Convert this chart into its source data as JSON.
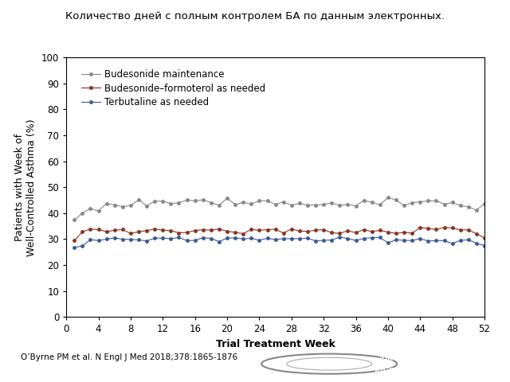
{
  "title": "Количество дней с полным контролем БА по данным электронных.",
  "xlabel": "Trial Treatment Week",
  "ylabel": "Patients with Week of\nWell-Controlled Asthma (%)",
  "ylim": [
    0,
    100
  ],
  "yticks": [
    0,
    10,
    20,
    30,
    40,
    50,
    60,
    70,
    80,
    90,
    100
  ],
  "xlim": [
    0,
    52
  ],
  "xticks": [
    0,
    4,
    8,
    12,
    16,
    20,
    24,
    28,
    32,
    36,
    40,
    44,
    48,
    52
  ],
  "caption": "O’Byrne PM et al. N Engl J Med 2018;378:1865-1876",
  "legend": [
    {
      "label": "Budesonide maintenance",
      "color": "#888888"
    },
    {
      "label": "Budesonide–formoterol as needed",
      "color": "#8B3322"
    },
    {
      "label": "Terbutaline as needed",
      "color": "#3B5998"
    }
  ],
  "budesonide_maintenance": {
    "color": "#888888",
    "x": [
      1,
      2,
      3,
      4,
      5,
      6,
      7,
      8,
      9,
      10,
      11,
      12,
      13,
      14,
      15,
      16,
      17,
      18,
      19,
      20,
      21,
      22,
      23,
      24,
      25,
      26,
      27,
      28,
      29,
      30,
      31,
      32,
      33,
      34,
      35,
      36,
      37,
      38,
      39,
      40,
      41,
      42,
      43,
      44,
      45,
      46,
      47,
      48,
      49,
      50,
      51,
      52
    ],
    "y": [
      37,
      40,
      41,
      42,
      43,
      43,
      43,
      44,
      44,
      44,
      44,
      44,
      44,
      44,
      44,
      45,
      44,
      44,
      44,
      45,
      44,
      44,
      44,
      44,
      44,
      44,
      44,
      44,
      44,
      44,
      44,
      44,
      44,
      44,
      44,
      44,
      44,
      44,
      44,
      45,
      45,
      44,
      44,
      44,
      44,
      44,
      44,
      43,
      43,
      43,
      41,
      44
    ]
  },
  "budesonide_formoterol": {
    "color": "#8B3322",
    "x": [
      1,
      2,
      3,
      4,
      5,
      6,
      7,
      8,
      9,
      10,
      11,
      12,
      13,
      14,
      15,
      16,
      17,
      18,
      19,
      20,
      21,
      22,
      23,
      24,
      25,
      26,
      27,
      28,
      29,
      30,
      31,
      32,
      33,
      34,
      35,
      36,
      37,
      38,
      39,
      40,
      41,
      42,
      43,
      44,
      45,
      46,
      47,
      48,
      49,
      50,
      51,
      52
    ],
    "y": [
      30,
      32,
      33,
      33,
      33,
      33,
      33,
      33,
      33,
      33,
      33,
      33,
      33,
      33,
      33,
      34,
      34,
      33,
      33,
      34,
      33,
      33,
      33,
      33,
      33,
      33,
      33,
      34,
      33,
      33,
      33,
      33,
      33,
      33,
      33,
      33,
      33,
      33,
      33,
      33,
      33,
      33,
      33,
      35,
      34,
      34,
      34,
      34,
      33,
      33,
      32,
      31
    ]
  },
  "terbutaline": {
    "color": "#3B5998",
    "x": [
      1,
      2,
      3,
      4,
      5,
      6,
      7,
      8,
      9,
      10,
      11,
      12,
      13,
      14,
      15,
      16,
      17,
      18,
      19,
      20,
      21,
      22,
      23,
      24,
      25,
      26,
      27,
      28,
      29,
      30,
      31,
      32,
      33,
      34,
      35,
      36,
      37,
      38,
      39,
      40,
      41,
      42,
      43,
      44,
      45,
      46,
      47,
      48,
      49,
      50,
      51,
      52
    ],
    "y": [
      26,
      28,
      30,
      30,
      30,
      30,
      30,
      30,
      30,
      30,
      30,
      30,
      30,
      30,
      30,
      30,
      30,
      30,
      29,
      30,
      30,
      30,
      30,
      30,
      30,
      30,
      30,
      30,
      30,
      30,
      30,
      30,
      30,
      30,
      30,
      30,
      30,
      30,
      30,
      29,
      29,
      30,
      30,
      30,
      30,
      29,
      30,
      29,
      29,
      29,
      28,
      27
    ]
  },
  "background_color": "#ffffff",
  "title_fontsize": 9.5,
  "axis_label_fontsize": 9,
  "tick_fontsize": 8.5,
  "legend_fontsize": 8.5,
  "caption_fontsize": 7.5
}
